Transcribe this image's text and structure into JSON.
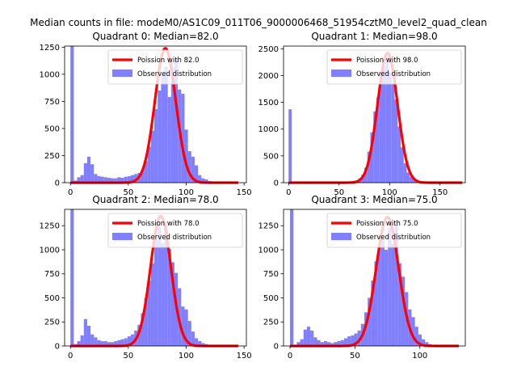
{
  "figure": {
    "suptitle": "Median counts in file: modeM0/AS1C09_011T06_9000006468_51954cztM0_level2_quad_clean"
  },
  "colors": {
    "hist": "#7f7fff",
    "fit": "#ff0000"
  },
  "chart_data": [
    {
      "type": "bar+line",
      "title": "Quadrant 0: Median=82.0",
      "xlim": [
        -5,
        152
      ],
      "ylim": [
        0,
        1260
      ],
      "xticks": [
        0,
        50,
        100,
        150
      ],
      "yticks": [
        0,
        250,
        500,
        750,
        1000,
        1250
      ],
      "legend": {
        "placement": "top-right",
        "fit_label": "Poission with 82.0",
        "hist_label": "Observed distribution"
      },
      "fit": {
        "mean": 82,
        "peak": 1240,
        "x_start": 0,
        "x_end": 145
      },
      "bin_width": 2.9,
      "bins": [
        {
          "x": 0,
          "y": 1260
        },
        {
          "x": 2.9,
          "y": 20
        },
        {
          "x": 5.8,
          "y": 50
        },
        {
          "x": 8.7,
          "y": 70
        },
        {
          "x": 11.6,
          "y": 180
        },
        {
          "x": 14.5,
          "y": 240
        },
        {
          "x": 17.4,
          "y": 170
        },
        {
          "x": 20.3,
          "y": 80
        },
        {
          "x": 23.2,
          "y": 60
        },
        {
          "x": 26.1,
          "y": 55
        },
        {
          "x": 29,
          "y": 50
        },
        {
          "x": 31.9,
          "y": 45
        },
        {
          "x": 34.8,
          "y": 40
        },
        {
          "x": 37.7,
          "y": 40
        },
        {
          "x": 40.6,
          "y": 50
        },
        {
          "x": 43.5,
          "y": 45
        },
        {
          "x": 46.4,
          "y": 55
        },
        {
          "x": 49.3,
          "y": 60
        },
        {
          "x": 52.2,
          "y": 70
        },
        {
          "x": 55.1,
          "y": 80
        },
        {
          "x": 58,
          "y": 90
        },
        {
          "x": 60.9,
          "y": 120
        },
        {
          "x": 63.8,
          "y": 200
        },
        {
          "x": 66.7,
          "y": 330
        },
        {
          "x": 69.6,
          "y": 480
        },
        {
          "x": 72.5,
          "y": 680
        },
        {
          "x": 75.4,
          "y": 850
        },
        {
          "x": 78.3,
          "y": 1000
        },
        {
          "x": 81.2,
          "y": 1070
        },
        {
          "x": 84.1,
          "y": 790
        },
        {
          "x": 87,
          "y": 1060
        },
        {
          "x": 89.9,
          "y": 1140
        },
        {
          "x": 92.8,
          "y": 860
        },
        {
          "x": 95.7,
          "y": 820
        },
        {
          "x": 98.6,
          "y": 490
        },
        {
          "x": 101.5,
          "y": 290
        },
        {
          "x": 104.4,
          "y": 240
        },
        {
          "x": 107.3,
          "y": 160
        },
        {
          "x": 110.2,
          "y": 70
        },
        {
          "x": 113.1,
          "y": 40
        },
        {
          "x": 116,
          "y": 30
        },
        {
          "x": 118.9,
          "y": 15
        },
        {
          "x": 121.8,
          "y": 8
        },
        {
          "x": 124.7,
          "y": 5
        }
      ]
    },
    {
      "type": "bar+line",
      "title": "Quadrant 1: Median=98.0",
      "xlim": [
        -5,
        175
      ],
      "ylim": [
        0,
        2550
      ],
      "xticks": [
        0,
        50,
        100,
        150
      ],
      "yticks": [
        0,
        500,
        1000,
        1500,
        2000,
        2500
      ],
      "legend": {
        "placement": "top-right",
        "fit_label": "Poission with 98.0",
        "hist_label": "Observed distribution"
      },
      "fit": {
        "mean": 98,
        "peak": 2420,
        "x_start": 0,
        "x_end": 172
      },
      "bin_width": 3.0,
      "bins": [
        {
          "x": 0,
          "y": 1370
        },
        {
          "x": 3,
          "y": 10
        },
        {
          "x": 6,
          "y": 5
        },
        {
          "x": 54,
          "y": 10
        },
        {
          "x": 57,
          "y": 15
        },
        {
          "x": 60,
          "y": 20
        },
        {
          "x": 63,
          "y": 30
        },
        {
          "x": 66,
          "y": 45
        },
        {
          "x": 69,
          "y": 80
        },
        {
          "x": 72,
          "y": 150
        },
        {
          "x": 75,
          "y": 280
        },
        {
          "x": 78,
          "y": 580
        },
        {
          "x": 81,
          "y": 940
        },
        {
          "x": 84,
          "y": 1330
        },
        {
          "x": 87,
          "y": 1590
        },
        {
          "x": 90,
          "y": 2050
        },
        {
          "x": 93,
          "y": 2180
        },
        {
          "x": 96,
          "y": 2360
        },
        {
          "x": 99,
          "y": 2060
        },
        {
          "x": 102,
          "y": 1860
        },
        {
          "x": 105,
          "y": 1550
        },
        {
          "x": 108,
          "y": 1050
        },
        {
          "x": 111,
          "y": 660
        },
        {
          "x": 114,
          "y": 360
        },
        {
          "x": 117,
          "y": 190
        },
        {
          "x": 120,
          "y": 110
        },
        {
          "x": 123,
          "y": 60
        },
        {
          "x": 126,
          "y": 40
        },
        {
          "x": 129,
          "y": 20
        },
        {
          "x": 132,
          "y": 10
        }
      ]
    },
    {
      "type": "bar+line",
      "title": "Quadrant 2: Median=78.0",
      "xlim": [
        -5,
        152
      ],
      "ylim": [
        0,
        1420
      ],
      "xticks": [
        0,
        50,
        100,
        150
      ],
      "yticks": [
        0,
        250,
        500,
        750,
        1000,
        1250
      ],
      "legend": {
        "placement": "top-right",
        "fit_label": "Poission with 78.0",
        "hist_label": "Observed distribution"
      },
      "fit": {
        "mean": 78,
        "peak": 1350,
        "x_start": 0,
        "x_end": 145
      },
      "bin_width": 2.9,
      "bins": [
        {
          "x": 0,
          "y": 1420
        },
        {
          "x": 2.9,
          "y": 20
        },
        {
          "x": 5.8,
          "y": 50
        },
        {
          "x": 8.7,
          "y": 110
        },
        {
          "x": 11.6,
          "y": 280
        },
        {
          "x": 14.5,
          "y": 210
        },
        {
          "x": 17.4,
          "y": 120
        },
        {
          "x": 20.3,
          "y": 90
        },
        {
          "x": 23.2,
          "y": 60
        },
        {
          "x": 26.1,
          "y": 50
        },
        {
          "x": 29,
          "y": 50
        },
        {
          "x": 31.9,
          "y": 40
        },
        {
          "x": 34.8,
          "y": 40
        },
        {
          "x": 37.7,
          "y": 50
        },
        {
          "x": 40.6,
          "y": 60
        },
        {
          "x": 43.5,
          "y": 70
        },
        {
          "x": 46.4,
          "y": 80
        },
        {
          "x": 49.3,
          "y": 100
        },
        {
          "x": 52.2,
          "y": 120
        },
        {
          "x": 55.1,
          "y": 160
        },
        {
          "x": 58,
          "y": 220
        },
        {
          "x": 60.9,
          "y": 340
        },
        {
          "x": 63.8,
          "y": 500
        },
        {
          "x": 66.7,
          "y": 680
        },
        {
          "x": 69.6,
          "y": 860
        },
        {
          "x": 72.5,
          "y": 1110
        },
        {
          "x": 75.4,
          "y": 1250
        },
        {
          "x": 78.3,
          "y": 1070
        },
        {
          "x": 81.2,
          "y": 1260
        },
        {
          "x": 84.1,
          "y": 1010
        },
        {
          "x": 87,
          "y": 870
        },
        {
          "x": 89.9,
          "y": 760
        },
        {
          "x": 92.8,
          "y": 600
        },
        {
          "x": 95.7,
          "y": 410
        },
        {
          "x": 98.6,
          "y": 380
        },
        {
          "x": 101.5,
          "y": 260
        },
        {
          "x": 104.4,
          "y": 150
        },
        {
          "x": 107.3,
          "y": 80
        },
        {
          "x": 110.2,
          "y": 50
        },
        {
          "x": 113.1,
          "y": 30
        },
        {
          "x": 116,
          "y": 20
        },
        {
          "x": 118.9,
          "y": 10
        },
        {
          "x": 121.8,
          "y": 5
        }
      ]
    },
    {
      "type": "bar+line",
      "title": "Quadrant 3: Median=75.0",
      "xlim": [
        -5,
        135
      ],
      "ylim": [
        0,
        1420
      ],
      "xticks": [
        0,
        50,
        100
      ],
      "yticks": [
        0,
        250,
        500,
        750,
        1000,
        1250
      ],
      "legend": {
        "placement": "top-right",
        "fit_label": "Poission with 75.0",
        "hist_label": "Observed distribution"
      },
      "fit": {
        "mean": 75,
        "peak": 1340,
        "x_start": 0,
        "x_end": 130
      },
      "bin_width": 2.6,
      "bins": [
        {
          "x": 0,
          "y": 1420
        },
        {
          "x": 2.6,
          "y": 10
        },
        {
          "x": 5.2,
          "y": 40
        },
        {
          "x": 7.8,
          "y": 70
        },
        {
          "x": 10.4,
          "y": 170
        },
        {
          "x": 13,
          "y": 200
        },
        {
          "x": 15.6,
          "y": 160
        },
        {
          "x": 18.2,
          "y": 90
        },
        {
          "x": 20.8,
          "y": 60
        },
        {
          "x": 23.4,
          "y": 40
        },
        {
          "x": 26,
          "y": 50
        },
        {
          "x": 28.6,
          "y": 40
        },
        {
          "x": 31.2,
          "y": 30
        },
        {
          "x": 33.8,
          "y": 40
        },
        {
          "x": 36.4,
          "y": 50
        },
        {
          "x": 39,
          "y": 60
        },
        {
          "x": 41.6,
          "y": 80
        },
        {
          "x": 44.2,
          "y": 100
        },
        {
          "x": 46.8,
          "y": 110
        },
        {
          "x": 49.4,
          "y": 130
        },
        {
          "x": 52,
          "y": 160
        },
        {
          "x": 54.6,
          "y": 230
        },
        {
          "x": 57.2,
          "y": 350
        },
        {
          "x": 59.8,
          "y": 500
        },
        {
          "x": 62.4,
          "y": 680
        },
        {
          "x": 65,
          "y": 880
        },
        {
          "x": 67.6,
          "y": 1040
        },
        {
          "x": 70.2,
          "y": 1100
        },
        {
          "x": 72.8,
          "y": 1000
        },
        {
          "x": 75.4,
          "y": 1230
        },
        {
          "x": 78,
          "y": 1060
        },
        {
          "x": 80.6,
          "y": 1260
        },
        {
          "x": 83.2,
          "y": 860
        },
        {
          "x": 85.8,
          "y": 720
        },
        {
          "x": 88.4,
          "y": 560
        },
        {
          "x": 91,
          "y": 380
        },
        {
          "x": 93.6,
          "y": 300
        },
        {
          "x": 96.2,
          "y": 200
        },
        {
          "x": 98.8,
          "y": 120
        },
        {
          "x": 101.4,
          "y": 70
        },
        {
          "x": 104,
          "y": 40
        },
        {
          "x": 106.6,
          "y": 20
        },
        {
          "x": 109.2,
          "y": 10
        }
      ]
    }
  ]
}
